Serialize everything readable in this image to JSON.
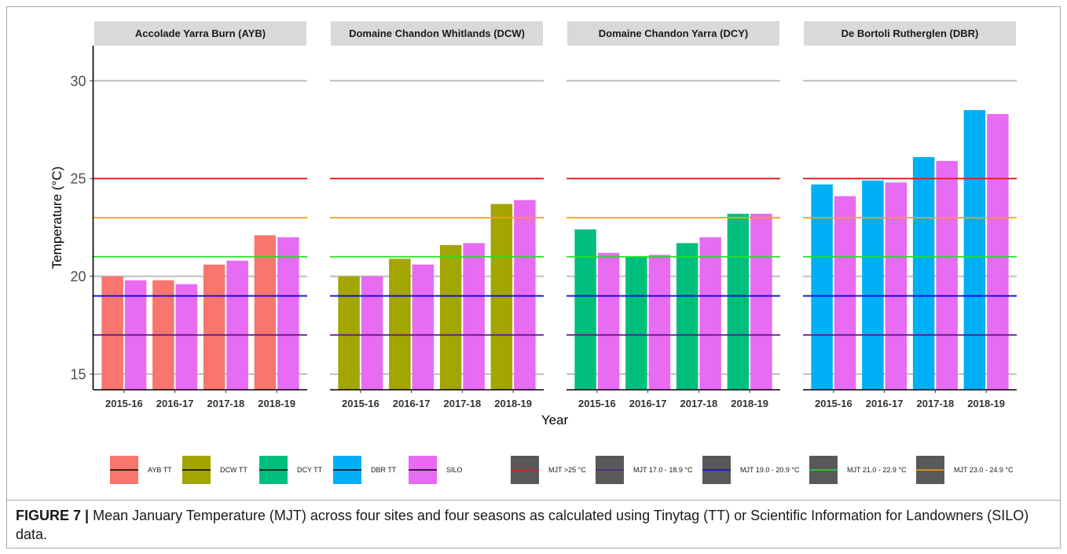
{
  "figure": {
    "caption_label": "FIGURE 7 |",
    "caption_text": "Mean January Temperature (MJT) across four sites and four seasons as calculated using Tinytag (TT) or Scientific Information for Landowners (SILO) data."
  },
  "chart_data": {
    "type": "bar",
    "xlabel": "Year",
    "ylabel": "Temperature (°C)",
    "ylim": [
      14.2,
      31.8
    ],
    "yticks": [
      15,
      20,
      25,
      30
    ],
    "grid": true,
    "legend_position": "bottom",
    "categories": [
      "2015-16",
      "2016-17",
      "2017-18",
      "2018-19"
    ],
    "panels": [
      {
        "title": "Accolade Yarra Burn (AYB)",
        "series": [
          {
            "name": "AYB TT",
            "color": "#F8766D",
            "values": [
              20.0,
              19.8,
              20.6,
              22.1
            ]
          },
          {
            "name": "SILO",
            "color": "#E76BF3",
            "values": [
              19.8,
              19.6,
              20.8,
              22.0
            ]
          }
        ]
      },
      {
        "title": "Domaine Chandon Whitlands (DCW)",
        "series": [
          {
            "name": "DCW TT",
            "color": "#A3A500",
            "values": [
              20.0,
              20.9,
              21.6,
              23.7
            ]
          },
          {
            "name": "SILO",
            "color": "#E76BF3",
            "values": [
              20.0,
              20.6,
              21.7,
              23.9
            ]
          }
        ]
      },
      {
        "title": "Domaine Chandon Yarra (DCY)",
        "series": [
          {
            "name": "DCY TT",
            "color": "#00BF7D",
            "values": [
              22.4,
              21.0,
              21.7,
              23.2
            ]
          },
          {
            "name": "SILO",
            "color": "#E76BF3",
            "values": [
              21.2,
              21.1,
              22.0,
              23.2
            ]
          }
        ]
      },
      {
        "title": "De Bortoli Rutherglen (DBR)",
        "series": [
          {
            "name": "DBR TT",
            "color": "#00B0F6",
            "values": [
              24.7,
              24.9,
              26.1,
              28.5
            ]
          },
          {
            "name": "SILO",
            "color": "#E76BF3",
            "values": [
              24.1,
              24.8,
              25.9,
              28.3
            ]
          }
        ]
      }
    ],
    "reference_lines": [
      {
        "name": "MJT >25 °C",
        "y": 25,
        "color": "#E31A1C"
      },
      {
        "name": "MJT 17.0 - 18.9 °C",
        "y": 17,
        "color": "#5E1A8B"
      },
      {
        "name": "MJT 19.0 - 20.9 °C",
        "y": 19,
        "color": "#0A0AE6"
      },
      {
        "name": "MJT 21.0 - 22.9 °C",
        "y": 21,
        "color": "#22E022"
      },
      {
        "name": "MJT 23.0 - 24.9 °C",
        "y": 23,
        "color": "#F4A30A"
      }
    ]
  }
}
